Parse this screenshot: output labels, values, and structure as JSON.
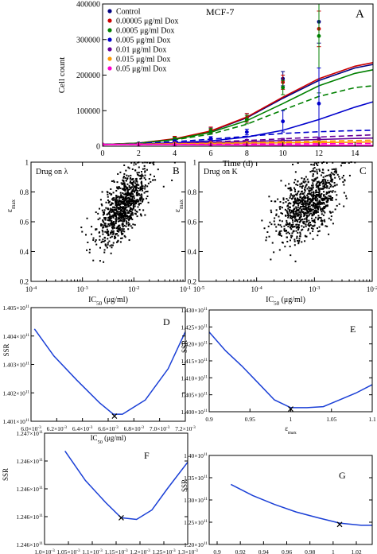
{
  "chart_data": [
    {
      "id": "A",
      "type": "line",
      "panel_label": "A",
      "annotation": "MCF-7",
      "xlabel": "Time (d)",
      "ylabel": "Cell count",
      "xlim": [
        0,
        15
      ],
      "ylim": [
        0,
        400000
      ],
      "xticks": [
        0,
        2,
        4,
        6,
        8,
        10,
        12,
        14
      ],
      "xtick_labels": [
        "0",
        "2",
        "4",
        "6",
        "8",
        "10",
        "12",
        "14"
      ],
      "yticks": [
        0,
        100000,
        200000,
        300000,
        400000
      ],
      "ytick_labels": [
        "0",
        "100000",
        "200000",
        "300000",
        "400000"
      ],
      "legend_position": "top-left",
      "series": [
        {
          "name": "Control",
          "color": "#000080",
          "points": [
            [
              0,
              5000
            ],
            [
              2,
              8000
            ],
            [
              4,
              22000
            ],
            [
              6,
              45000
            ],
            [
              8,
              80000
            ],
            [
              10,
              190000
            ],
            [
              12,
              350000
            ]
          ],
          "errors": [
            0,
            2000,
            5000,
            8000,
            12000,
            20000,
            60000
          ],
          "solid": [
            [
              0,
              5000
            ],
            [
              2,
              9000
            ],
            [
              4,
              20000
            ],
            [
              6,
              42000
            ],
            [
              8,
              80000
            ],
            [
              10,
              135000
            ],
            [
              12,
              185000
            ],
            [
              14,
              220000
            ],
            [
              15,
              230000
            ]
          ],
          "dashed": []
        },
        {
          "name": "0.00005 μg/ml Dox",
          "color": "#cc0000",
          "points": [
            [
              0,
              5000
            ],
            [
              2,
              8000
            ],
            [
              4,
              23000
            ],
            [
              6,
              46000
            ],
            [
              8,
              80000
            ],
            [
              10,
              180000
            ],
            [
              12,
              330000
            ]
          ],
          "errors": [
            0,
            2000,
            5000,
            8000,
            12000,
            20000,
            50000
          ],
          "solid": [
            [
              0,
              5000
            ],
            [
              2,
              9000
            ],
            [
              4,
              21000
            ],
            [
              6,
              43000
            ],
            [
              8,
              82000
            ],
            [
              10,
              138000
            ],
            [
              12,
              190000
            ],
            [
              14,
              225000
            ],
            [
              15,
              235000
            ]
          ],
          "dashed": []
        },
        {
          "name": "0.0005 μg/ml Dox",
          "color": "#008000",
          "points": [
            [
              0,
              5000
            ],
            [
              2,
              8000
            ],
            [
              4,
              20000
            ],
            [
              6,
              42000
            ],
            [
              8,
              75000
            ],
            [
              10,
              165000
            ],
            [
              12,
              310000
            ]
          ],
          "errors": [
            0,
            2000,
            5000,
            8000,
            12000,
            20000,
            160000
          ],
          "solid": [
            [
              0,
              5000
            ],
            [
              2,
              8500
            ],
            [
              4,
              19000
            ],
            [
              6,
              39000
            ],
            [
              8,
              72000
            ],
            [
              10,
              120000
            ],
            [
              12,
              170000
            ],
            [
              14,
              205000
            ],
            [
              15,
              215000
            ]
          ],
          "dashed": [
            [
              0,
              5000
            ],
            [
              2,
              8500
            ],
            [
              4,
              18000
            ],
            [
              6,
              34000
            ],
            [
              8,
              62000
            ],
            [
              10,
              102000
            ],
            [
              12,
              140000
            ],
            [
              14,
              165000
            ],
            [
              15,
              170000
            ]
          ]
        },
        {
          "name": "0.005 μg/ml Dox",
          "color": "#0000cc",
          "points": [
            [
              0,
              5000
            ],
            [
              2,
              7000
            ],
            [
              4,
              14000
            ],
            [
              6,
              22000
            ],
            [
              8,
              40000
            ],
            [
              10,
              70000
            ],
            [
              12,
              120000
            ]
          ],
          "errors": [
            0,
            1500,
            4000,
            5000,
            8000,
            30000,
            100000
          ],
          "solid": [
            [
              0,
              5000
            ],
            [
              2,
              6500
            ],
            [
              4,
              9500
            ],
            [
              6,
              15000
            ],
            [
              8,
              26000
            ],
            [
              10,
              45000
            ],
            [
              12,
              75000
            ],
            [
              14,
              110000
            ],
            [
              15,
              125000
            ]
          ],
          "dashed": [
            [
              0,
              5000
            ],
            [
              2,
              7500
            ],
            [
              4,
              13000
            ],
            [
              6,
              20000
            ],
            [
              8,
              28000
            ],
            [
              10,
              36000
            ],
            [
              12,
              41000
            ],
            [
              14,
              44000
            ],
            [
              15,
              45000
            ]
          ]
        },
        {
          "name": "0.01 μg/ml Dox",
          "color": "#660099",
          "points": [
            [
              0,
              5000
            ],
            [
              2,
              6000
            ],
            [
              4,
              9000
            ],
            [
              6,
              12000
            ],
            [
              8,
              16000
            ],
            [
              10,
              18000
            ],
            [
              12,
              20000
            ]
          ],
          "errors": [
            0,
            1000,
            2000,
            3000,
            3000,
            4000,
            5000
          ],
          "solid": [
            [
              0,
              5000
            ],
            [
              2,
              6000
            ],
            [
              4,
              8000
            ],
            [
              6,
              10500
            ],
            [
              8,
              13000
            ],
            [
              10,
              16000
            ],
            [
              12,
              19000
            ],
            [
              14,
              22000
            ],
            [
              15,
              23000
            ]
          ],
          "dashed": [
            [
              0,
              5000
            ],
            [
              2,
              6500
            ],
            [
              4,
              9000
            ],
            [
              6,
              12000
            ],
            [
              8,
              16000
            ],
            [
              10,
              21000
            ],
            [
              12,
              26000
            ],
            [
              14,
              30000
            ],
            [
              15,
              32000
            ]
          ]
        },
        {
          "name": "0.015 μg/ml Dox",
          "color": "#ff9900",
          "points": [
            [
              0,
              5000
            ],
            [
              2,
              5500
            ],
            [
              4,
              7000
            ],
            [
              6,
              8000
            ],
            [
              8,
              9000
            ],
            [
              10,
              10000
            ],
            [
              12,
              11000
            ]
          ],
          "errors": [
            0,
            800,
            1000,
            1500,
            1500,
            2000,
            2000
          ],
          "solid": [
            [
              0,
              5000
            ],
            [
              2,
              5500
            ],
            [
              4,
              6500
            ],
            [
              6,
              7500
            ],
            [
              8,
              8500
            ],
            [
              10,
              9500
            ],
            [
              12,
              10500
            ],
            [
              14,
              11500
            ],
            [
              15,
              12000
            ]
          ],
          "dashed": [
            [
              0,
              5000
            ],
            [
              2,
              5800
            ],
            [
              4,
              7000
            ],
            [
              6,
              8500
            ],
            [
              8,
              10000
            ],
            [
              10,
              12000
            ],
            [
              12,
              14000
            ],
            [
              14,
              16000
            ],
            [
              15,
              17000
            ]
          ]
        },
        {
          "name": "0.05 μg/ml Dox",
          "color": "#ff00cc",
          "points": [
            [
              0,
              5000
            ],
            [
              2,
              4500
            ],
            [
              4,
              4000
            ],
            [
              6,
              3500
            ],
            [
              8,
              3000
            ],
            [
              10,
              2500
            ],
            [
              12,
              2000
            ]
          ],
          "errors": [
            0,
            500,
            500,
            500,
            500,
            500,
            500
          ],
          "solid": [
            [
              0,
              5000
            ],
            [
              2,
              4800
            ],
            [
              4,
              4400
            ],
            [
              6,
              4000
            ],
            [
              8,
              3600
            ],
            [
              10,
              3200
            ],
            [
              12,
              2900
            ],
            [
              14,
              2600
            ],
            [
              15,
              2500
            ]
          ],
          "dashed": [
            [
              0,
              5000
            ],
            [
              2,
              5000
            ],
            [
              4,
              5200
            ],
            [
              6,
              5600
            ],
            [
              8,
              6000
            ],
            [
              10,
              6500
            ],
            [
              12,
              7000
            ],
            [
              14,
              7500
            ],
            [
              15,
              7700
            ]
          ]
        }
      ]
    },
    {
      "id": "B",
      "type": "scatter",
      "panel_label": "B",
      "annotation": "Drug on λ",
      "ylabel": "ε_max",
      "xlabel": "IC_50 (μg/ml)",
      "xscale": "log",
      "xlim": [
        0.0001,
        0.1
      ],
      "ylim": [
        0.2,
        1.0
      ],
      "xtick_labels": [
        "10^-4",
        "10^-3",
        "10^-2",
        "10^-1"
      ],
      "ytick_labels": [
        "0.2",
        "0.4",
        "0.6",
        "0.8",
        "1"
      ],
      "cloud": {
        "n": 900,
        "center_log10_x": -2.2,
        "center_y": 0.7,
        "spread_log10_x": 0.25,
        "spread_y": 0.09,
        "slope_y_per_decade": 0.35,
        "y_cap": 1.0,
        "seed": 7
      }
    },
    {
      "id": "C",
      "type": "scatter",
      "panel_label": "C",
      "annotation": "Drug on K",
      "ylabel": "ε_max",
      "xlabel": "IC_50 (μg/ml)",
      "xscale": "log",
      "xlim": [
        1e-05,
        0.01
      ],
      "ylim": [
        0.2,
        1.0
      ],
      "xtick_labels": [
        "10^-5",
        "10^-4",
        "10^-3",
        "10^-2"
      ],
      "ytick_labels": [
        "0.2",
        "0.4",
        "0.6",
        "0.8",
        "1"
      ],
      "cloud": {
        "n": 900,
        "center_log10_x": -3.1,
        "center_y": 0.72,
        "spread_log10_x": 0.28,
        "spread_y": 0.1,
        "slope_y_per_decade": 0.25,
        "y_cap": 1.0,
        "seed": 13
      }
    },
    {
      "id": "D",
      "type": "line",
      "panel_label": "D",
      "ylabel": "SSR",
      "xlabel": "IC_50 (μg/ml)",
      "xlim": [
        0.0059,
        0.00725
      ],
      "ylim": [
        140100000000.0,
        140500000000.0
      ],
      "ytick_labels": [
        "1.401×10^11",
        "1.402×10^11",
        "1.403×10^11",
        "1.404×10^11",
        "1.405×10^11"
      ],
      "xtick_labels": [
        "6.0×10^-3",
        "6.2×10^-3",
        "6.4×10^-3",
        "6.6×10^-3",
        "6.8×10^-3",
        "7.0×10^-3",
        "7.2×10^-3"
      ],
      "curve": [
        [
          0.00593,
          140425000000.0
        ],
        [
          0.0061,
          140330000000.0
        ],
        [
          0.0063,
          140245000000.0
        ],
        [
          0.0065,
          140165000000.0
        ],
        [
          0.00662,
          140125000000.0
        ],
        [
          0.0067,
          140125000000.0
        ],
        [
          0.0069,
          140175000000.0
        ],
        [
          0.0071,
          140285000000.0
        ],
        [
          0.00725,
          140415000000.0
        ]
      ],
      "min_marker": [
        0.00663,
        140118000000.0
      ]
    },
    {
      "id": "E",
      "type": "line",
      "panel_label": "E",
      "ylabel": "SSR",
      "xlabel": "ε_max",
      "xlim": [
        0.9,
        1.1
      ],
      "ylim": [
        140000000000.0,
        143000000000.0
      ],
      "ytick_labels": [
        "1.400×10^11",
        "1.405×10^11",
        "1.410×10^11",
        "1.415×10^11",
        "1.420×10^11",
        "1.425×10^11",
        "1.430×10^11"
      ],
      "xtick_labels": [
        "0.9",
        "0.95",
        "1",
        "1.05",
        "1.1"
      ],
      "curve": [
        [
          0.9,
          142350000000.0
        ],
        [
          0.92,
          141800000000.0
        ],
        [
          0.94,
          141350000000.0
        ],
        [
          0.96,
          140850000000.0
        ],
        [
          0.98,
          140350000000.0
        ],
        [
          1.0,
          140120000000.0
        ],
        [
          1.02,
          140120000000.0
        ],
        [
          1.04,
          140150000000.0
        ],
        [
          1.06,
          140350000000.0
        ],
        [
          1.08,
          140550000000.0
        ],
        [
          1.1,
          140800000000.0
        ]
      ],
      "min_marker": [
        1.0,
        140080000000.0
      ]
    },
    {
      "id": "F",
      "type": "line",
      "panel_label": "F",
      "ylabel": "SSR",
      "xlabel": "IC_50 (μg/ml)",
      "xlim": [
        0.00102,
        0.0013
      ],
      "ylim": [
        124580000000.0,
        124780000000.0
      ],
      "ytick_labels": [
        "1.246×10^11",
        "1.246×10^11",
        "1.246×10^11",
        "1.246×10^11",
        "1.247×10^11"
      ],
      "xtick_labels": [
        "1.0×10^-3",
        "1.05×10^-3",
        "1.1×10^-3",
        "1.15×10^-3",
        "1.2×10^-3",
        "1.25×10^-3",
        "1.3×10^-3"
      ],
      "curve": [
        [
          0.00106,
          124748000000.0
        ],
        [
          0.0011,
          124695000000.0
        ],
        [
          0.00114,
          124655000000.0
        ],
        [
          0.00117,
          124628000000.0
        ],
        [
          0.0012,
          124625000000.0
        ],
        [
          0.00123,
          124642000000.0
        ],
        [
          0.00126,
          124680000000.0
        ],
        [
          0.0013,
          124728000000.0
        ]
      ],
      "min_marker": [
        0.00117,
        124628000000.0
      ]
    },
    {
      "id": "G",
      "type": "line",
      "panel_label": "G",
      "ylabel": "SSR",
      "xlabel": "ε_max",
      "xlim": [
        0.88,
        1.03
      ],
      "ylim": [
        120000000000.0,
        140000000000.0
      ],
      "ytick_labels": [
        "1.20×10^11",
        "1.25×10^11",
        "1.30×10^11",
        "1.35×10^11",
        "1.40×10^11"
      ],
      "xtick_labels": [
        "0.9",
        "0.92",
        "0.94",
        "0.96",
        "0.98",
        "1",
        "1.02"
      ],
      "curve": [
        [
          0.9,
          133500000000.0
        ],
        [
          0.92,
          131000000000.0
        ],
        [
          0.94,
          129000000000.0
        ],
        [
          0.96,
          127300000000.0
        ],
        [
          0.98,
          126000000000.0
        ],
        [
          1.0,
          124800000000.0
        ],
        [
          1.02,
          124300000000.0
        ],
        [
          1.03,
          124300000000.0
        ]
      ],
      "min_marker": [
        1.0,
        124500000000.0
      ]
    }
  ]
}
